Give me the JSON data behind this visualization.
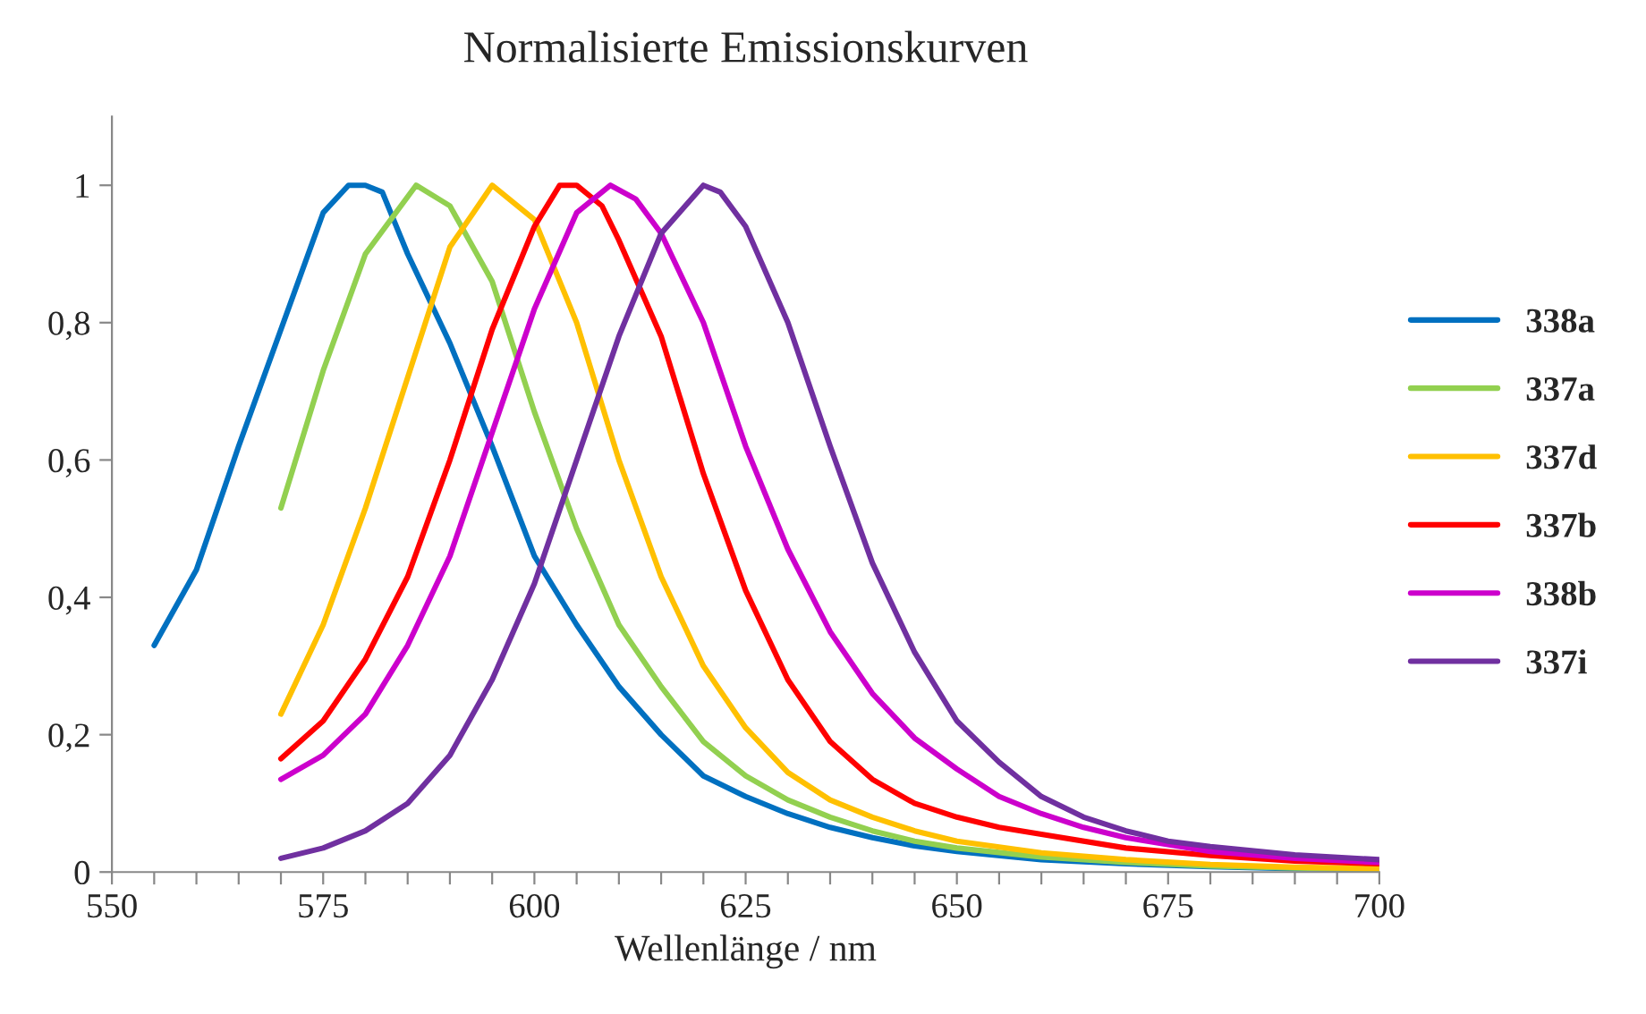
{
  "chart_data": {
    "type": "line",
    "title": "Normalisierte Emissionskurven",
    "xlabel": "Wellenlänge / nm",
    "xlim": [
      550,
      700
    ],
    "xticks": [
      550,
      {
        "value": 555,
        "label": null
      },
      {
        "value": 560,
        "label": null
      },
      {
        "value": 565,
        "label": null
      },
      {
        "value": 570,
        "label": null
      },
      575,
      {
        "value": 580,
        "label": null
      },
      {
        "value": 585,
        "label": null
      },
      {
        "value": 590,
        "label": null
      },
      {
        "value": 595,
        "label": null
      },
      600,
      {
        "value": 605,
        "label": null
      },
      {
        "value": 610,
        "label": null
      },
      {
        "value": 615,
        "label": null
      },
      {
        "value": 620,
        "label": null
      },
      625,
      {
        "value": 630,
        "label": null
      },
      {
        "value": 635,
        "label": null
      },
      {
        "value": 640,
        "label": null
      },
      {
        "value": 645,
        "label": null
      },
      650,
      {
        "value": 655,
        "label": null
      },
      {
        "value": 660,
        "label": null
      },
      {
        "value": 665,
        "label": null
      },
      {
        "value": 670,
        "label": null
      },
      675,
      {
        "value": 680,
        "label": null
      },
      {
        "value": 685,
        "label": null
      },
      {
        "value": 690,
        "label": null
      },
      {
        "value": 695,
        "label": null
      },
      700
    ],
    "ylim": [
      0,
      1.1
    ],
    "yticks": [
      0,
      {
        "value": 0.2,
        "label": "0,2"
      },
      {
        "value": 0.4,
        "label": "0,4"
      },
      {
        "value": 0.6,
        "label": "0,6"
      },
      {
        "value": 0.8,
        "label": "0,8"
      },
      1
    ],
    "grid": false,
    "legend": "right",
    "marker": "none",
    "line_style": "solid",
    "series": [
      {
        "name": "338a",
        "color": "#0070c0",
        "x": [
          555,
          560,
          565,
          570,
          575,
          578,
          580,
          582,
          585,
          590,
          595,
          600,
          605,
          610,
          615,
          620,
          625,
          630,
          635,
          640,
          645,
          650,
          660,
          670,
          680,
          690,
          700
        ],
        "values": [
          0.33,
          0.44,
          0.62,
          0.79,
          0.96,
          1.0,
          1.0,
          0.99,
          0.9,
          0.77,
          0.62,
          0.46,
          0.36,
          0.27,
          0.2,
          0.14,
          0.11,
          0.085,
          0.065,
          0.05,
          0.038,
          0.03,
          0.018,
          0.012,
          0.008,
          0.005,
          0.004
        ]
      },
      {
        "name": "337a",
        "color": "#92d050",
        "x": [
          570,
          575,
          580,
          586,
          590,
          595,
          600,
          605,
          610,
          615,
          620,
          625,
          630,
          635,
          640,
          645,
          650,
          660,
          670,
          680,
          690,
          700
        ],
        "values": [
          0.53,
          0.73,
          0.9,
          1.0,
          0.97,
          0.86,
          0.67,
          0.5,
          0.36,
          0.27,
          0.19,
          0.14,
          0.105,
          0.08,
          0.06,
          0.045,
          0.035,
          0.022,
          0.014,
          0.009,
          0.006,
          0.004
        ]
      },
      {
        "name": "337d",
        "color": "#ffc000",
        "x": [
          570,
          575,
          580,
          585,
          590,
          595,
          600,
          605,
          610,
          615,
          620,
          625,
          630,
          635,
          640,
          645,
          650,
          660,
          670,
          680,
          690,
          700
        ],
        "values": [
          0.23,
          0.36,
          0.53,
          0.72,
          0.91,
          1.0,
          0.95,
          0.8,
          0.6,
          0.43,
          0.3,
          0.21,
          0.145,
          0.105,
          0.08,
          0.06,
          0.045,
          0.028,
          0.018,
          0.011,
          0.007,
          0.005
        ]
      },
      {
        "name": "337b",
        "color": "#ff0000",
        "x": [
          570,
          575,
          580,
          585,
          590,
          595,
          600,
          603,
          605,
          608,
          610,
          615,
          620,
          625,
          630,
          635,
          640,
          645,
          650,
          655,
          660,
          670,
          680,
          690,
          700
        ],
        "values": [
          0.165,
          0.22,
          0.31,
          0.43,
          0.6,
          0.79,
          0.94,
          1.0,
          1.0,
          0.97,
          0.92,
          0.78,
          0.58,
          0.41,
          0.28,
          0.19,
          0.135,
          0.1,
          0.08,
          0.065,
          0.055,
          0.035,
          0.024,
          0.016,
          0.012
        ]
      },
      {
        "name": "338b",
        "color": "#cc00cc",
        "x": [
          570,
          575,
          580,
          585,
          590,
          595,
          600,
          605,
          609,
          612,
          615,
          620,
          625,
          630,
          635,
          640,
          645,
          650,
          655,
          660,
          665,
          670,
          680,
          690,
          700
        ],
        "values": [
          0.135,
          0.17,
          0.23,
          0.33,
          0.46,
          0.64,
          0.82,
          0.96,
          1.0,
          0.98,
          0.93,
          0.8,
          0.62,
          0.47,
          0.35,
          0.26,
          0.195,
          0.15,
          0.11,
          0.085,
          0.065,
          0.05,
          0.03,
          0.02,
          0.014
        ]
      },
      {
        "name": "337i",
        "color": "#7030a0",
        "x": [
          570,
          575,
          580,
          585,
          590,
          595,
          600,
          605,
          610,
          615,
          620,
          622,
          625,
          630,
          635,
          640,
          645,
          650,
          655,
          660,
          665,
          670,
          675,
          680,
          690,
          700
        ],
        "values": [
          0.02,
          0.035,
          0.06,
          0.1,
          0.17,
          0.28,
          0.42,
          0.6,
          0.78,
          0.93,
          1.0,
          0.99,
          0.94,
          0.8,
          0.62,
          0.45,
          0.32,
          0.22,
          0.16,
          0.11,
          0.08,
          0.06,
          0.045,
          0.037,
          0.025,
          0.018
        ]
      }
    ]
  }
}
